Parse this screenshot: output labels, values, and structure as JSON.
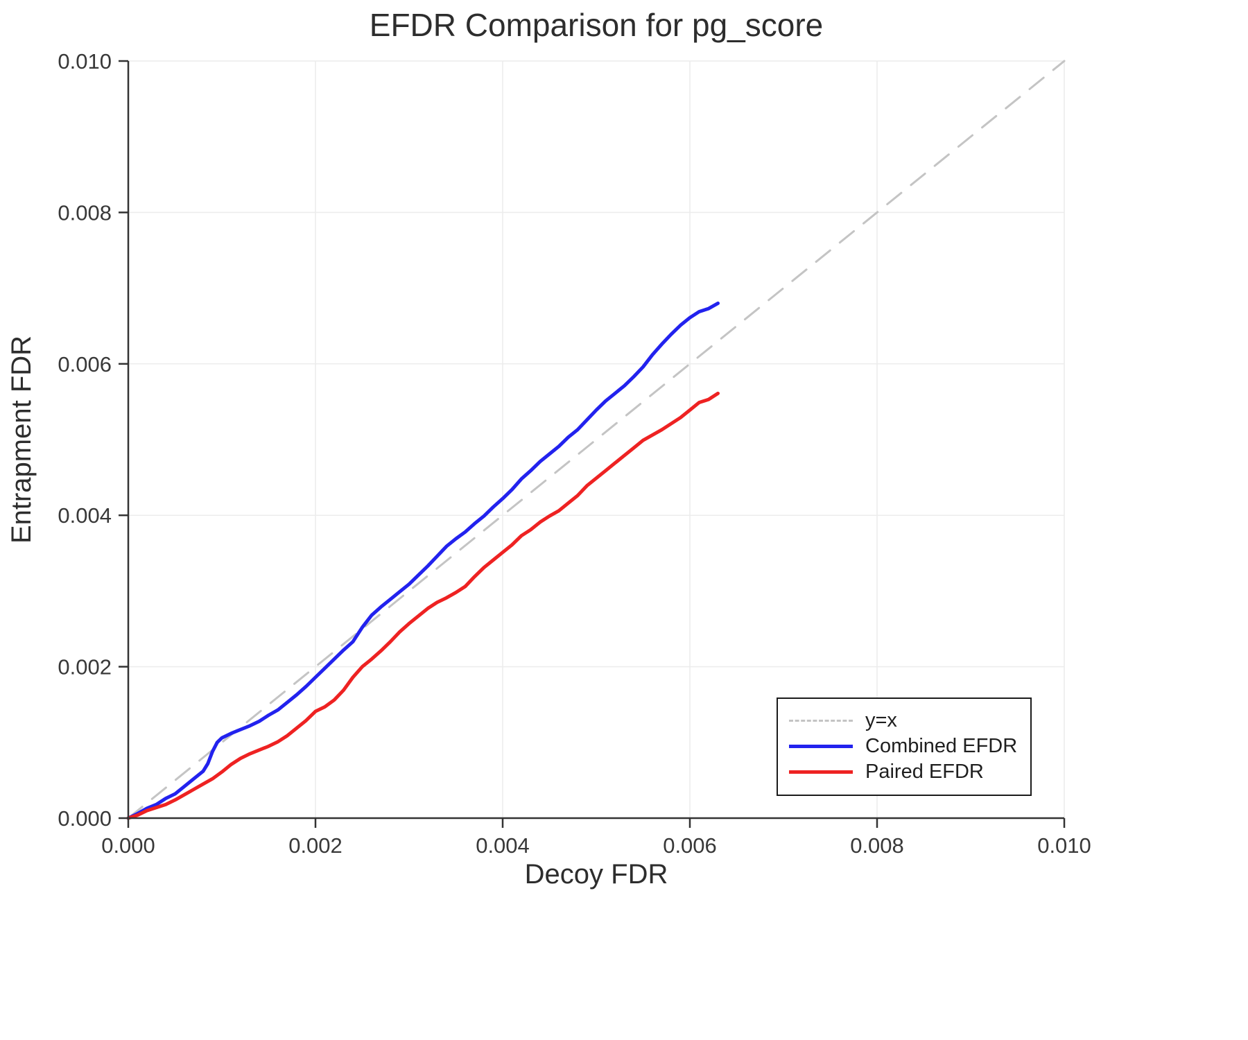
{
  "chart_data": {
    "type": "line",
    "title": "EFDR Comparison for pg_score",
    "xlabel": "Decoy FDR",
    "ylabel": "Entrapment FDR",
    "xlim": [
      0.0,
      0.01
    ],
    "ylim": [
      0.0,
      0.01
    ],
    "xticks": [
      "0.000",
      "0.002",
      "0.004",
      "0.006",
      "0.008",
      "0.010"
    ],
    "yticks": [
      "0.000",
      "0.002",
      "0.004",
      "0.006",
      "0.008",
      "0.010"
    ],
    "grid": true,
    "legend_position": "lower right",
    "colors": {
      "grid": "#ececec",
      "axis": "#333333",
      "tick_text": "#383838",
      "background": "#ffffff"
    },
    "series": [
      {
        "name": "y=x",
        "style": "dashed",
        "color": "#c4c4c4",
        "points": [
          [
            0.0,
            0.0
          ],
          [
            0.01,
            0.01
          ]
        ]
      },
      {
        "name": "Combined EFDR",
        "style": "solid",
        "color": "#2222ee",
        "points": [
          [
            0.0,
            0.0
          ],
          [
            0.0001,
            6e-05
          ],
          [
            0.0002,
            0.00013
          ],
          [
            0.0003,
            0.00018
          ],
          [
            0.0004,
            0.00026
          ],
          [
            0.0005,
            0.00032
          ],
          [
            0.0006,
            0.00042
          ],
          [
            0.0007,
            0.00052
          ],
          [
            0.0008,
            0.00062
          ],
          [
            0.00085,
            0.00072
          ],
          [
            0.0009,
            0.00088
          ],
          [
            0.00095,
            0.001
          ],
          [
            0.001,
            0.00106
          ],
          [
            0.0011,
            0.00112
          ],
          [
            0.0012,
            0.00117
          ],
          [
            0.0013,
            0.00122
          ],
          [
            0.0014,
            0.00128
          ],
          [
            0.0015,
            0.00136
          ],
          [
            0.0016,
            0.00143
          ],
          [
            0.0017,
            0.00153
          ],
          [
            0.0018,
            0.00163
          ],
          [
            0.0019,
            0.00174
          ],
          [
            0.002,
            0.00186
          ],
          [
            0.0021,
            0.00198
          ],
          [
            0.0022,
            0.0021
          ],
          [
            0.0023,
            0.00222
          ],
          [
            0.0024,
            0.00233
          ],
          [
            0.0025,
            0.00252
          ],
          [
            0.0026,
            0.00268
          ],
          [
            0.0027,
            0.00279
          ],
          [
            0.0028,
            0.00289
          ],
          [
            0.0029,
            0.00299
          ],
          [
            0.003,
            0.00309
          ],
          [
            0.0031,
            0.00321
          ],
          [
            0.0032,
            0.00333
          ],
          [
            0.0033,
            0.00346
          ],
          [
            0.0034,
            0.00359
          ],
          [
            0.0035,
            0.00369
          ],
          [
            0.0036,
            0.00378
          ],
          [
            0.0037,
            0.00389
          ],
          [
            0.0038,
            0.00399
          ],
          [
            0.0039,
            0.00411
          ],
          [
            0.004,
            0.00422
          ],
          [
            0.0041,
            0.00434
          ],
          [
            0.0042,
            0.00448
          ],
          [
            0.0043,
            0.00459
          ],
          [
            0.0044,
            0.00471
          ],
          [
            0.0045,
            0.00481
          ],
          [
            0.0046,
            0.00491
          ],
          [
            0.0047,
            0.00503
          ],
          [
            0.0048,
            0.00513
          ],
          [
            0.0049,
            0.00526
          ],
          [
            0.005,
            0.00539
          ],
          [
            0.0051,
            0.00551
          ],
          [
            0.0052,
            0.00561
          ],
          [
            0.0053,
            0.00571
          ],
          [
            0.0054,
            0.00583
          ],
          [
            0.0055,
            0.00596
          ],
          [
            0.0056,
            0.00612
          ],
          [
            0.0057,
            0.00626
          ],
          [
            0.0058,
            0.00639
          ],
          [
            0.0059,
            0.00651
          ],
          [
            0.006,
            0.00661
          ],
          [
            0.0061,
            0.00669
          ],
          [
            0.0062,
            0.00673
          ],
          [
            0.0063,
            0.0068
          ]
        ]
      },
      {
        "name": "Paired EFDR",
        "style": "solid",
        "color": "#ee2222",
        "points": [
          [
            0.0,
            0.0
          ],
          [
            0.0001,
            4e-05
          ],
          [
            0.0002,
            0.0001
          ],
          [
            0.0003,
            0.00014
          ],
          [
            0.0004,
            0.00018
          ],
          [
            0.0005,
            0.00024
          ],
          [
            0.0006,
            0.00031
          ],
          [
            0.0007,
            0.00038
          ],
          [
            0.0008,
            0.00045
          ],
          [
            0.0009,
            0.00052
          ],
          [
            0.001,
            0.00061
          ],
          [
            0.0011,
            0.00071
          ],
          [
            0.0012,
            0.00079
          ],
          [
            0.0013,
            0.00085
          ],
          [
            0.0014,
            0.0009
          ],
          [
            0.0015,
            0.00095
          ],
          [
            0.0016,
            0.00101
          ],
          [
            0.0017,
            0.00109
          ],
          [
            0.0018,
            0.00119
          ],
          [
            0.0019,
            0.00129
          ],
          [
            0.002,
            0.00141
          ],
          [
            0.0021,
            0.00147
          ],
          [
            0.0022,
            0.00156
          ],
          [
            0.0023,
            0.00169
          ],
          [
            0.0024,
            0.00186
          ],
          [
            0.0025,
            0.002
          ],
          [
            0.0026,
            0.0021
          ],
          [
            0.0027,
            0.00221
          ],
          [
            0.0028,
            0.00233
          ],
          [
            0.0029,
            0.00246
          ],
          [
            0.003,
            0.00257
          ],
          [
            0.0031,
            0.00267
          ],
          [
            0.0032,
            0.00277
          ],
          [
            0.0033,
            0.00285
          ],
          [
            0.0034,
            0.00291
          ],
          [
            0.0035,
            0.00298
          ],
          [
            0.0036,
            0.00306
          ],
          [
            0.0037,
            0.00319
          ],
          [
            0.0038,
            0.00331
          ],
          [
            0.0039,
            0.00341
          ],
          [
            0.004,
            0.00351
          ],
          [
            0.0041,
            0.00361
          ],
          [
            0.0042,
            0.00373
          ],
          [
            0.0043,
            0.00381
          ],
          [
            0.0044,
            0.00391
          ],
          [
            0.0045,
            0.00399
          ],
          [
            0.0046,
            0.00406
          ],
          [
            0.0047,
            0.00416
          ],
          [
            0.0048,
            0.00426
          ],
          [
            0.0049,
            0.00439
          ],
          [
            0.005,
            0.00449
          ],
          [
            0.0051,
            0.00459
          ],
          [
            0.0052,
            0.00469
          ],
          [
            0.0053,
            0.00479
          ],
          [
            0.0054,
            0.00489
          ],
          [
            0.0055,
            0.00499
          ],
          [
            0.0056,
            0.00506
          ],
          [
            0.0057,
            0.00513
          ],
          [
            0.0058,
            0.00521
          ],
          [
            0.0059,
            0.00529
          ],
          [
            0.006,
            0.00539
          ],
          [
            0.0061,
            0.00549
          ],
          [
            0.0062,
            0.00553
          ],
          [
            0.0063,
            0.00561
          ]
        ]
      }
    ]
  }
}
